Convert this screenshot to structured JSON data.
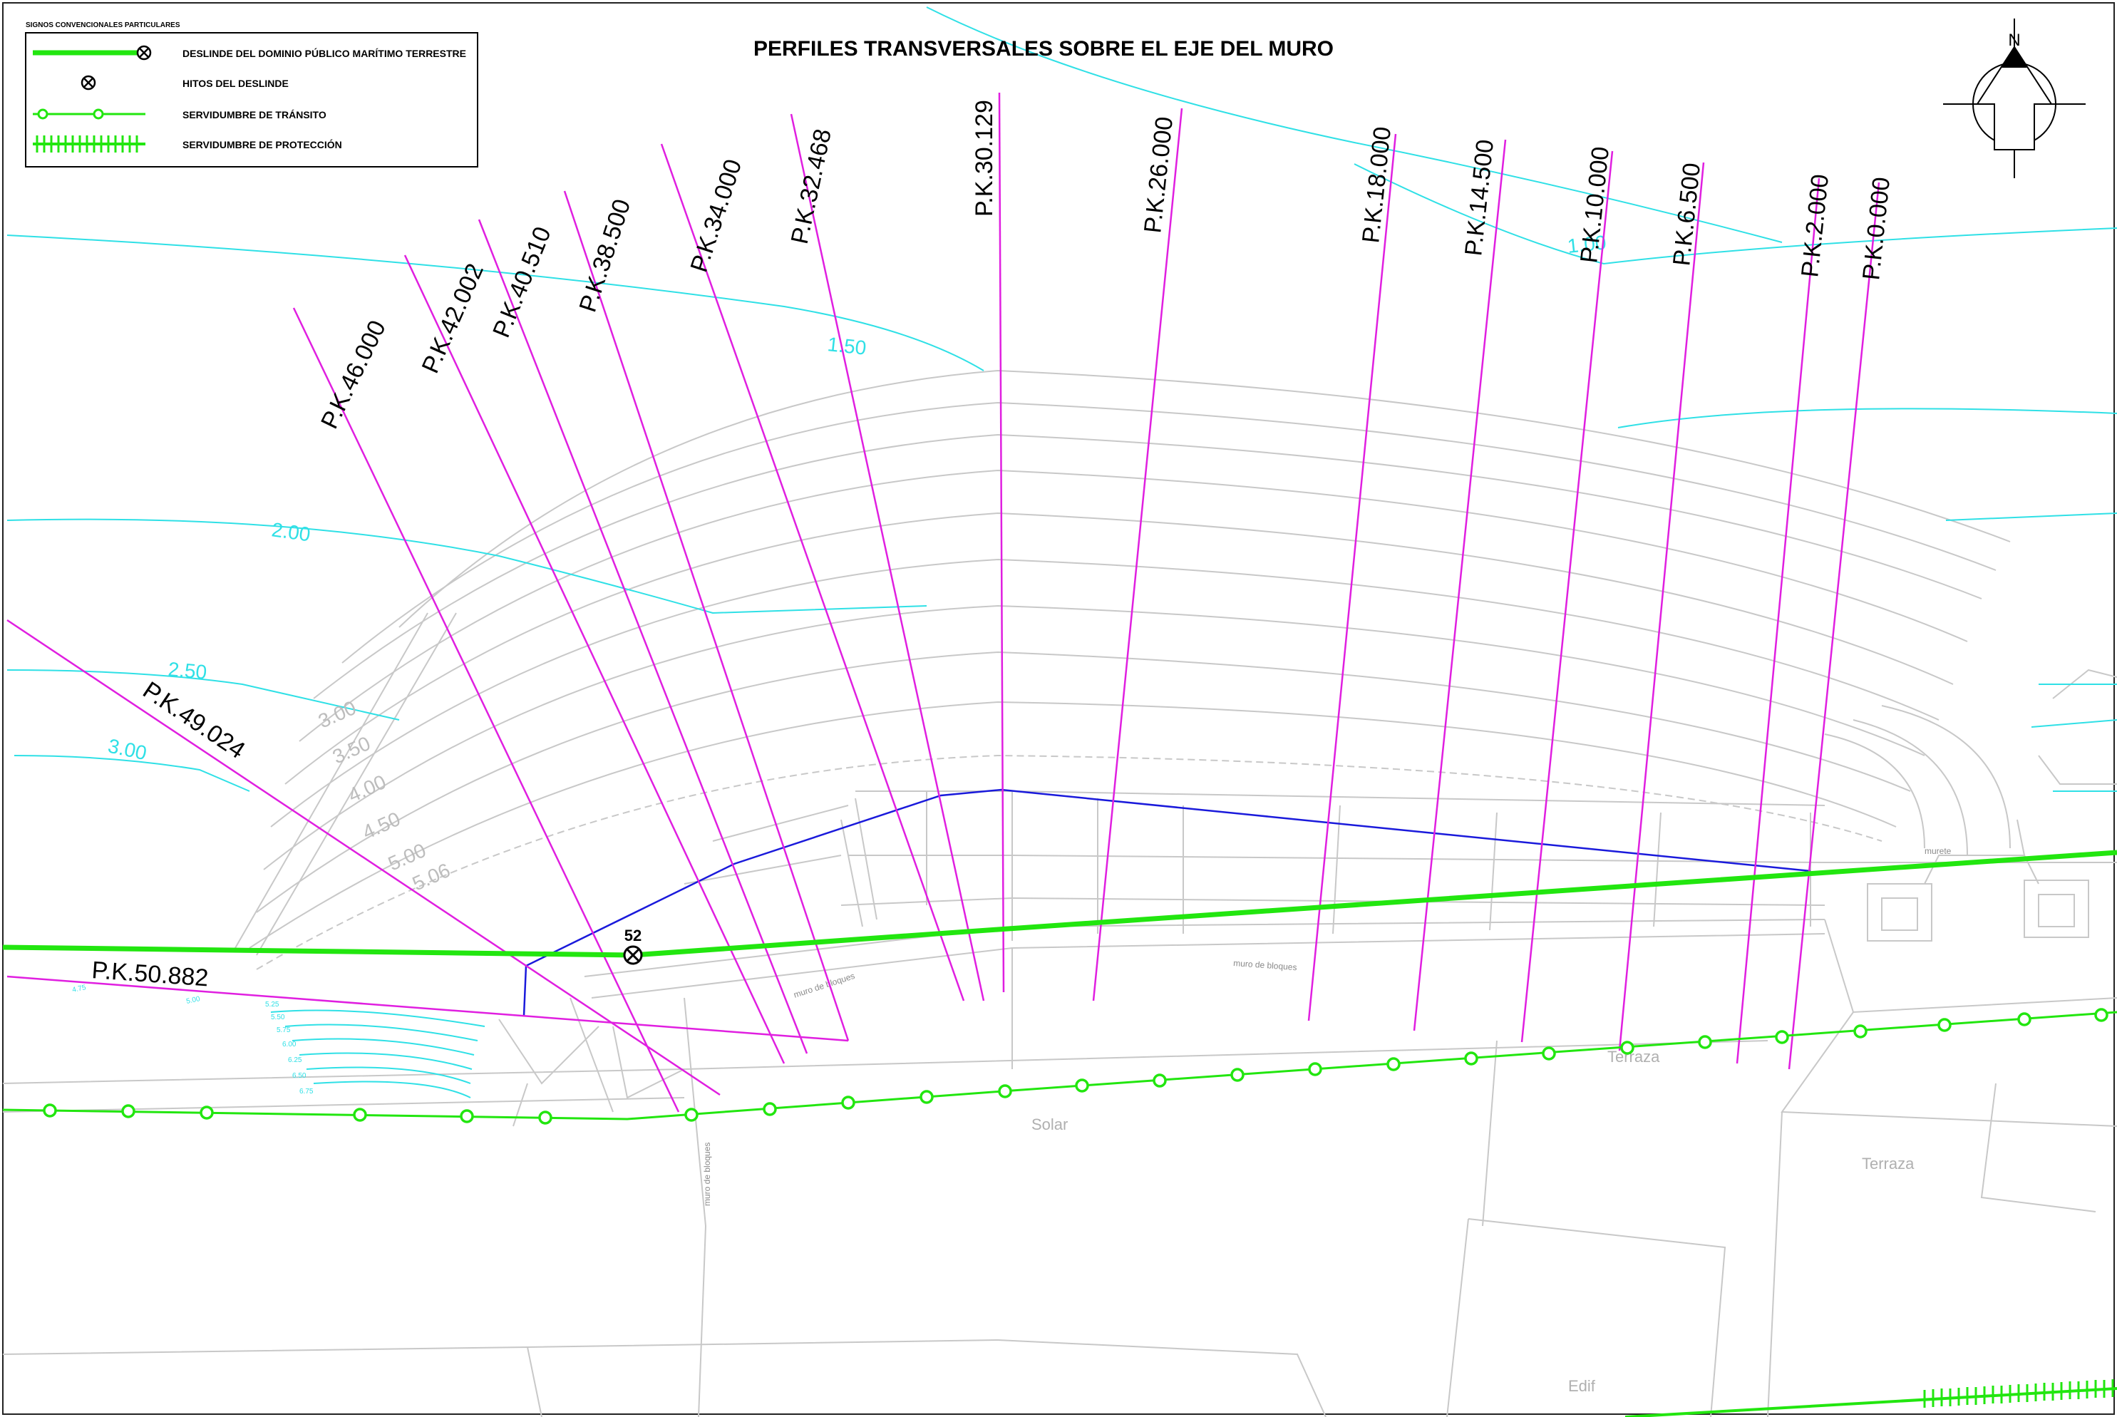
{
  "title": "PERFILES TRANSVERSALES SOBRE EL EJE DEL MURO",
  "legend": {
    "heading": "SIGNOS CONVENCIONALES PARTICULARES",
    "items": [
      {
        "icon": "green-line-with-cross-marker-icon",
        "label": "DESLINDE DEL DOMINIO PÚBLICO MARÍTIMO TERRESTRE"
      },
      {
        "icon": "crossed-circle-icon",
        "label": "HITOS DEL DESLINDE"
      },
      {
        "icon": "green-line-with-circles-icon",
        "label": "SERVIDUMBRE DE TRÁNSITO"
      },
      {
        "icon": "green-hatched-line-icon",
        "label": "SERVIDUMBRE DE PROTECCIÓN"
      }
    ]
  },
  "north_arrow": {
    "label": "N",
    "icon": "north-arrow-icon"
  },
  "profiles": [
    {
      "label": "P.K.0.000"
    },
    {
      "label": "P.K.2.000"
    },
    {
      "label": "P.K.6.500"
    },
    {
      "label": "P.K.10.000"
    },
    {
      "label": "P.K.14.500"
    },
    {
      "label": "P.K.18.000"
    },
    {
      "label": "P.K.26.000"
    },
    {
      "label": "P.K.30.129"
    },
    {
      "label": "P.K.32.468"
    },
    {
      "label": "P.K.34.000"
    },
    {
      "label": "P.K.38.500"
    },
    {
      "label": "P.K.40.510"
    },
    {
      "label": "P.K.42.002"
    },
    {
      "label": "P.K.46.000"
    },
    {
      "label": "P.K.49.024"
    },
    {
      "label": "P.K.50.882"
    }
  ],
  "contours": {
    "cyan": [
      "1.50",
      "2.00",
      "2.50",
      "3.00",
      "1.00"
    ],
    "grey": [
      "3.00",
      "3.50",
      "4.00",
      "4.50",
      "5.00",
      "5.06"
    ],
    "small": [
      "4.75",
      "5.00",
      "5.25",
      "5.50",
      "5.75",
      "6.00",
      "6.25",
      "6.50",
      "6.75"
    ]
  },
  "landmark": {
    "label": "52",
    "icon": "crossed-circle-icon"
  },
  "places": {
    "muro_de_bloques_1": "muro de bloques",
    "muro_de_bloques_2": "muro de bloques",
    "muro_de_bloques_3": "muro de bloques",
    "murete": "murete",
    "terraza_1": "Terraza",
    "terraza_2": "Terraza",
    "solar": "Solar",
    "edif": "Edif"
  },
  "colors": {
    "deslinde": "#22e60f",
    "profile_line": "#e01fe0",
    "muro_axis": "#1a1adb",
    "contour_cyan": "#2fe0e6",
    "base_grey": "#c8c8c8"
  }
}
